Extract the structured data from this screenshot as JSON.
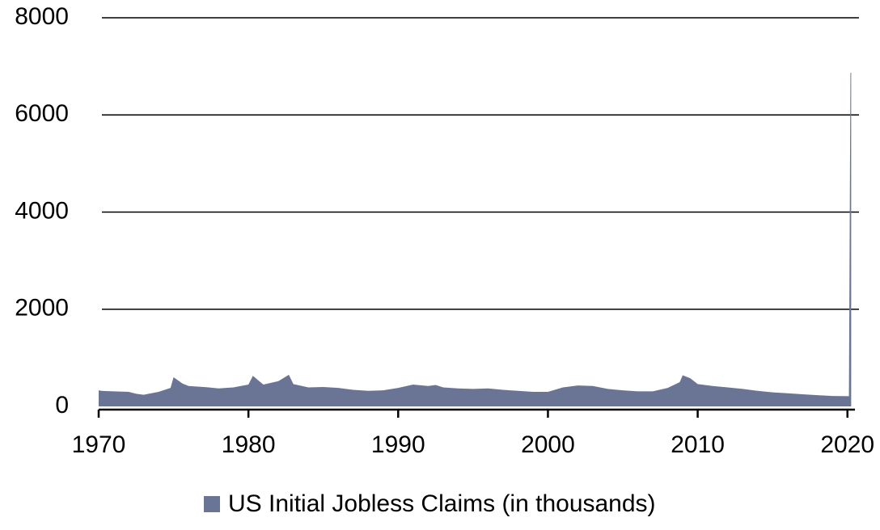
{
  "chart_data": {
    "type": "area",
    "x": [
      1970,
      1970.2,
      1971,
      1972,
      1972.5,
      1973,
      1974,
      1974.8,
      1975,
      1975.6,
      1976,
      1977,
      1978,
      1979,
      1980,
      1980.3,
      1980.8,
      1981,
      1982,
      1982.7,
      1983,
      1984,
      1985,
      1986,
      1987,
      1988,
      1989,
      1990,
      1991,
      1992,
      1992.5,
      1993,
      1994,
      1995,
      1996,
      1997,
      1998,
      1999,
      2000,
      2001,
      2002,
      2003,
      2004,
      2005,
      2006,
      2007,
      2008,
      2008.8,
      2009,
      2009.5,
      2010,
      2011,
      2012,
      2013,
      2014,
      2015,
      2016,
      2017,
      2018,
      2019,
      2020.1,
      2020.2,
      2020.25
    ],
    "series": [
      {
        "name": "US Initial Jobless Claims (in thousands)",
        "color": "#6a7596",
        "values": [
          330,
          320,
          310,
          300,
          260,
          240,
          300,
          380,
          600,
          470,
          420,
          400,
          370,
          390,
          450,
          630,
          500,
          450,
          520,
          650,
          460,
          390,
          400,
          380,
          340,
          320,
          330,
          380,
          450,
          420,
          440,
          390,
          370,
          360,
          370,
          340,
          320,
          300,
          300,
          390,
          430,
          420,
          360,
          330,
          310,
          310,
          380,
          500,
          640,
          580,
          460,
          420,
          390,
          360,
          320,
          290,
          270,
          250,
          230,
          215,
          210,
          6867,
          6867
        ]
      }
    ],
    "xlim": [
      1970,
      2020.5
    ],
    "xticks": [
      1970,
      1980,
      1990,
      2000,
      2010,
      2020
    ],
    "ylim": [
      0,
      8000
    ],
    "yticks": [
      0,
      2000,
      4000,
      6000,
      8000
    ],
    "grid": true,
    "legend": "bottom"
  }
}
